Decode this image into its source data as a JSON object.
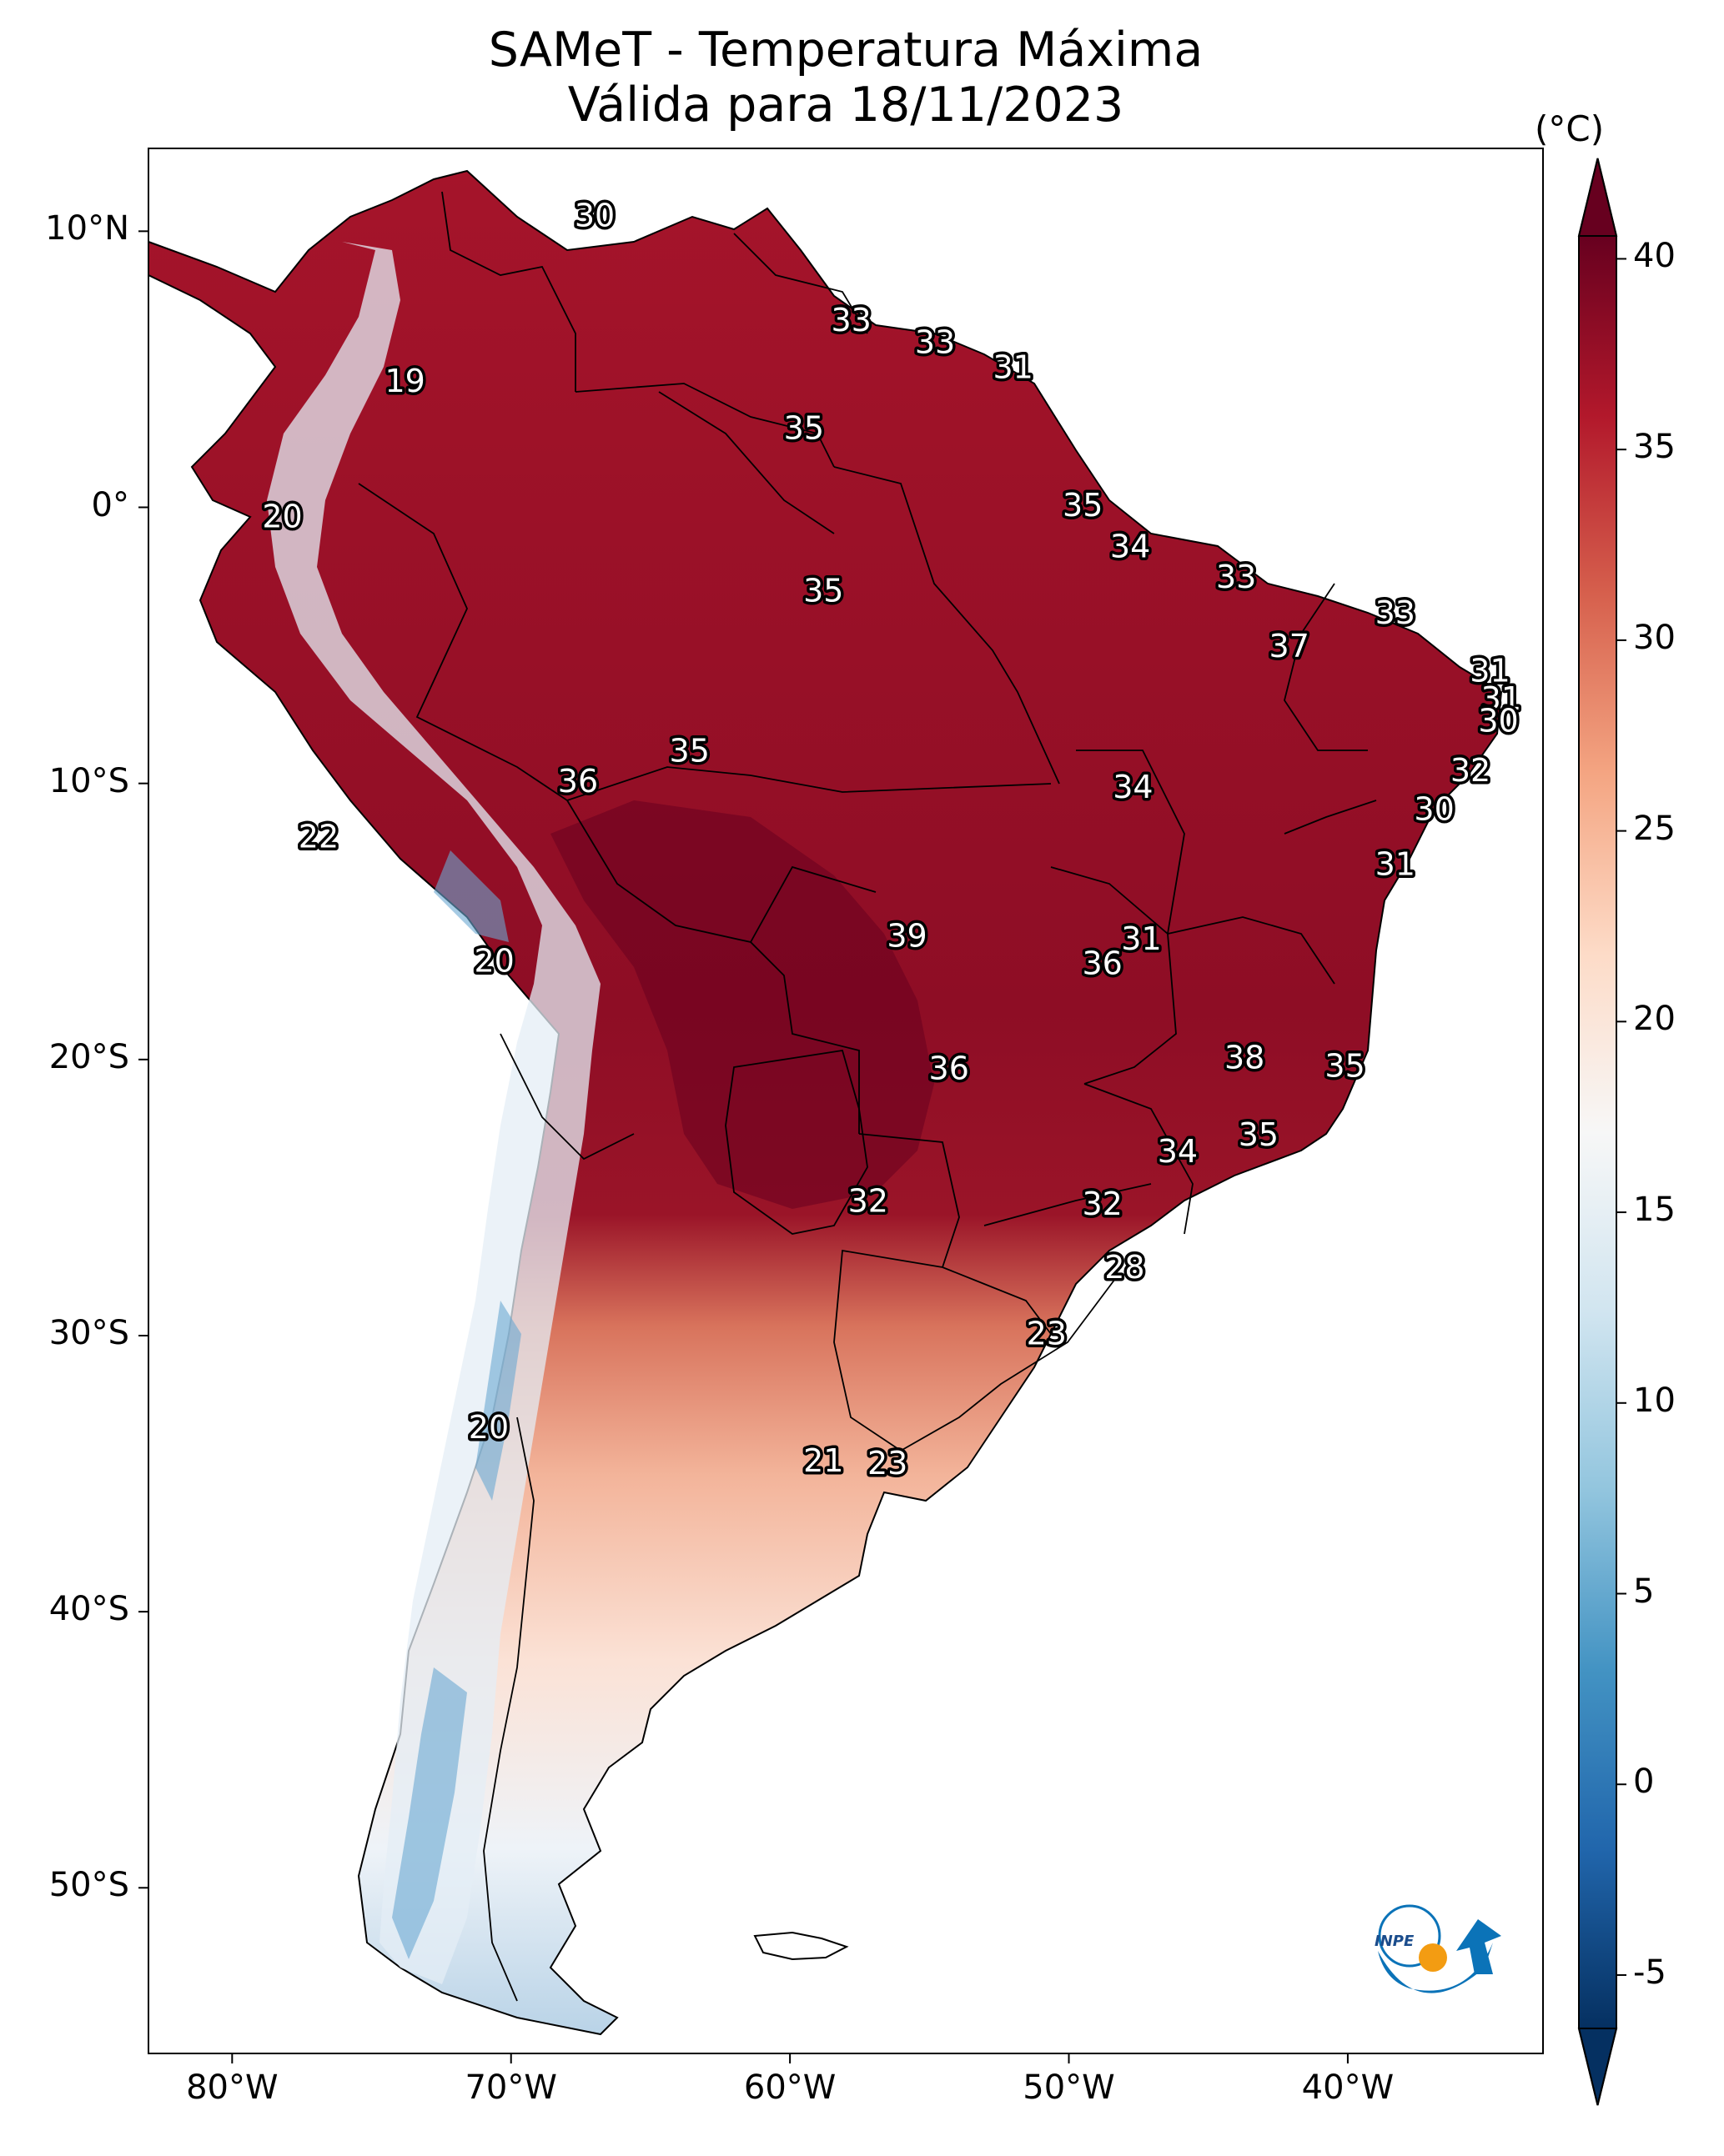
{
  "title": {
    "line1": "SAMeT - Temperatura Máxima",
    "line2": "Válida para 18/11/2023"
  },
  "axes": {
    "lon_ticks": [
      "80°W",
      "70°W",
      "60°W",
      "50°W",
      "40°W"
    ],
    "lat_ticks": [
      "10°N",
      "0°",
      "10°S",
      "20°S",
      "30°S",
      "40°S",
      "50°S"
    ]
  },
  "colorbar": {
    "unit": "(°C)",
    "ticks": [
      "40",
      "35",
      "30",
      "25",
      "20",
      "15",
      "10",
      "5",
      "0",
      "-5"
    ],
    "colors": [
      "#053061",
      "#2166ac",
      "#4393c3",
      "#92c5de",
      "#d1e5f0",
      "#f7f7f7",
      "#fddbc7",
      "#f4a582",
      "#d6604d",
      "#b2182b",
      "#67001f"
    ]
  },
  "logo": {
    "text": "INPE"
  },
  "map_data": {
    "type": "temperature-map",
    "lon_range": [
      -83,
      -33
    ],
    "lat_range": [
      -56,
      13
    ],
    "labels": [
      {
        "value": "30",
        "lon": -67.0,
        "lat": 10.5
      },
      {
        "value": "33",
        "lon": -57.8,
        "lat": 6.7
      },
      {
        "value": "33",
        "lon": -54.8,
        "lat": 5.9
      },
      {
        "value": "31",
        "lon": -52.0,
        "lat": 5.0
      },
      {
        "value": "19",
        "lon": -73.8,
        "lat": 4.5
      },
      {
        "value": "35",
        "lon": -59.5,
        "lat": 2.8
      },
      {
        "value": "20",
        "lon": -78.2,
        "lat": -0.4
      },
      {
        "value": "35",
        "lon": -49.5,
        "lat": 0.0
      },
      {
        "value": "34",
        "lon": -47.8,
        "lat": -1.5
      },
      {
        "value": "35",
        "lon": -58.8,
        "lat": -3.1
      },
      {
        "value": "33",
        "lon": -44.0,
        "lat": -2.6
      },
      {
        "value": "33",
        "lon": -38.3,
        "lat": -3.9
      },
      {
        "value": "37",
        "lon": -42.1,
        "lat": -5.1
      },
      {
        "value": "31",
        "lon": -34.9,
        "lat": -6.0
      },
      {
        "value": "31",
        "lon": -34.5,
        "lat": -7.0
      },
      {
        "value": "30",
        "lon": -34.6,
        "lat": -7.8
      },
      {
        "value": "35",
        "lon": -63.6,
        "lat": -8.9
      },
      {
        "value": "36",
        "lon": -67.6,
        "lat": -10.0
      },
      {
        "value": "32",
        "lon": -35.6,
        "lat": -9.6
      },
      {
        "value": "34",
        "lon": -47.7,
        "lat": -10.2
      },
      {
        "value": "30",
        "lon": -36.9,
        "lat": -11.0
      },
      {
        "value": "22",
        "lon": -76.9,
        "lat": -12.0
      },
      {
        "value": "31",
        "lon": -38.3,
        "lat": -13.0
      },
      {
        "value": "39",
        "lon": -55.8,
        "lat": -15.6
      },
      {
        "value": "31",
        "lon": -47.4,
        "lat": -15.7
      },
      {
        "value": "36",
        "lon": -48.8,
        "lat": -16.6
      },
      {
        "value": "20",
        "lon": -70.6,
        "lat": -16.5
      },
      {
        "value": "38",
        "lon": -43.7,
        "lat": -20.0
      },
      {
        "value": "35",
        "lon": -40.1,
        "lat": -20.3
      },
      {
        "value": "36",
        "lon": -54.3,
        "lat": -20.4
      },
      {
        "value": "35",
        "lon": -43.2,
        "lat": -22.8
      },
      {
        "value": "34",
        "lon": -46.1,
        "lat": -23.4
      },
      {
        "value": "32",
        "lon": -57.2,
        "lat": -25.2
      },
      {
        "value": "32",
        "lon": -48.8,
        "lat": -25.3
      },
      {
        "value": "28",
        "lon": -48.0,
        "lat": -27.6
      },
      {
        "value": "23",
        "lon": -50.8,
        "lat": -30.0
      },
      {
        "value": "20",
        "lon": -70.8,
        "lat": -33.4
      },
      {
        "value": "21",
        "lon": -58.8,
        "lat": -34.6
      },
      {
        "value": "23",
        "lon": -56.5,
        "lat": -34.7
      }
    ]
  }
}
